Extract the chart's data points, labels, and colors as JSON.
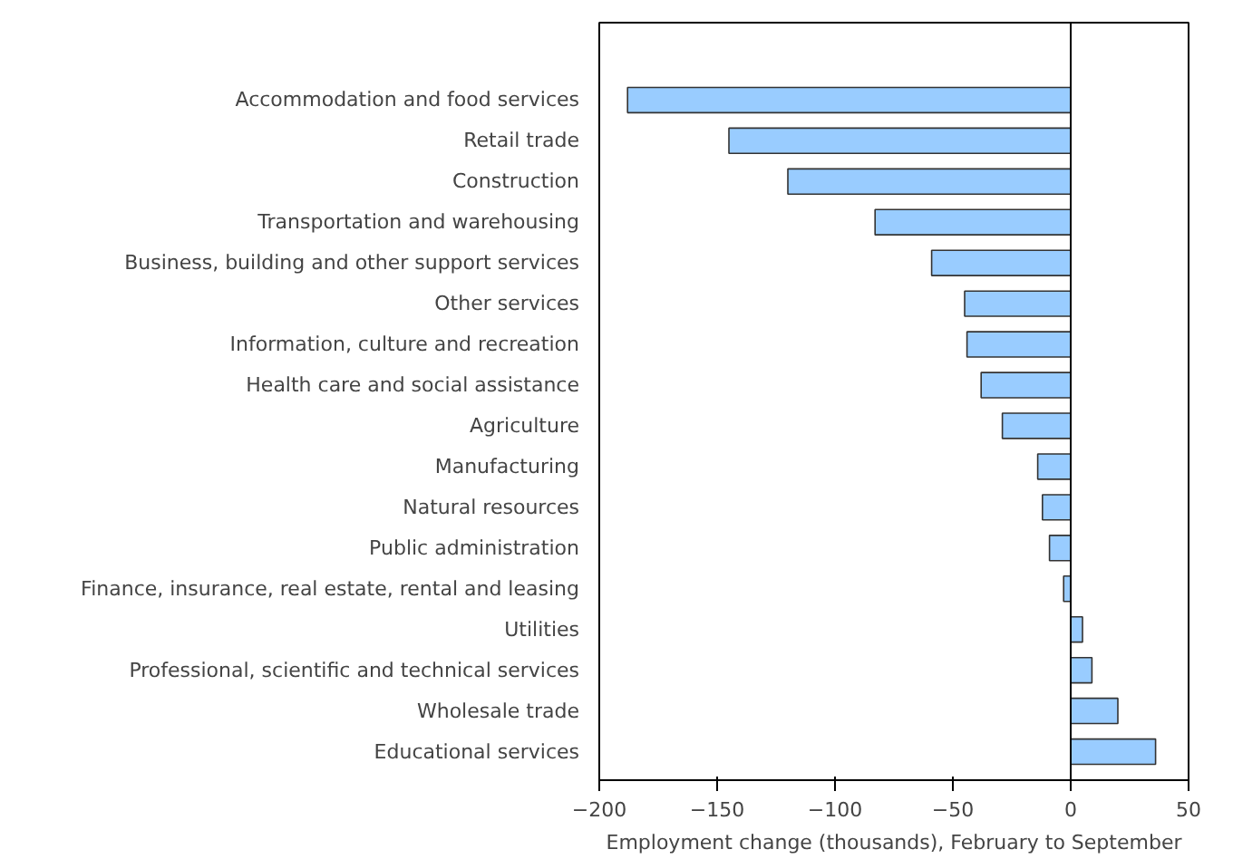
{
  "chart_data": {
    "type": "bar",
    "orientation": "horizontal",
    "xlabel": "Employment change (thousands), February to September",
    "categories": [
      "Accommodation and food services",
      "Retail trade",
      "Construction",
      "Transportation and warehousing",
      "Business, building and other support services",
      "Other services",
      "Information, culture and recreation",
      "Health care and social assistance",
      "Agriculture",
      "Manufacturing",
      "Natural resources",
      "Public administration",
      "Finance, insurance, real estate, rental and leasing",
      "Utilities",
      "Professional, scientific and technical services",
      "Wholesale trade",
      "Educational services"
    ],
    "values": [
      -188,
      -145,
      -120,
      -83,
      -59,
      -45,
      -44,
      -38,
      -29,
      -14,
      -12,
      -9,
      -3,
      5,
      9,
      20,
      36
    ],
    "color": "#99ccff",
    "xlim": [
      -200,
      50
    ],
    "xticks": [
      -200,
      -150,
      -100,
      -50,
      0,
      50
    ],
    "ref_lines": [
      {
        "axis": "x",
        "value": 0,
        "color": "#000000"
      }
    ],
    "grid": false
  }
}
